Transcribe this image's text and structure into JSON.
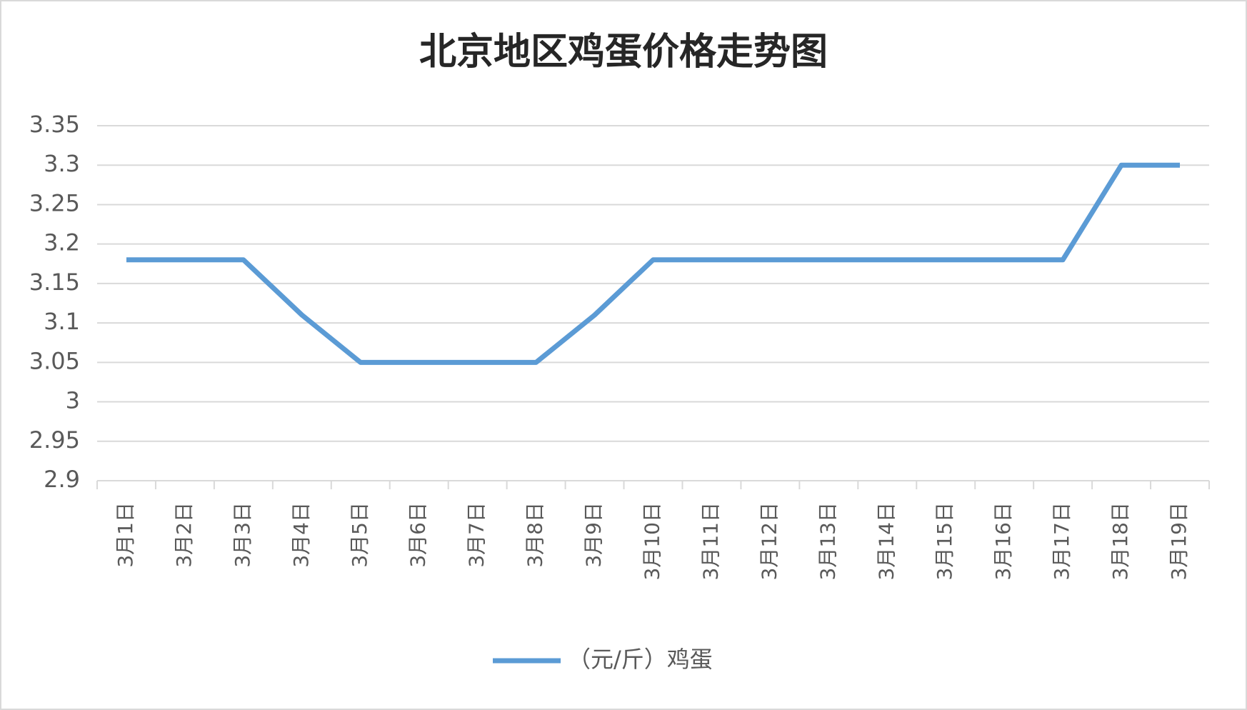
{
  "chart_data": {
    "type": "line",
    "title": "北京地区鸡蛋价格走势图",
    "categories": [
      "3月1日",
      "3月2日",
      "3月3日",
      "3月4日",
      "3月5日",
      "3月6日",
      "3月7日",
      "3月8日",
      "3月9日",
      "3月10日",
      "3月11日",
      "3月12日",
      "3月13日",
      "3月14日",
      "3月15日",
      "3月16日",
      "3月17日",
      "3月18日",
      "3月19日"
    ],
    "series": [
      {
        "name": "（元/斤）鸡蛋",
        "color": "#5b9bd5",
        "values": [
          3.18,
          3.18,
          3.18,
          3.11,
          3.05,
          3.05,
          3.05,
          3.05,
          3.11,
          3.18,
          3.18,
          3.18,
          3.18,
          3.18,
          3.18,
          3.18,
          3.18,
          3.3,
          3.3
        ]
      }
    ],
    "ylim": [
      2.9,
      3.35
    ],
    "yticks": [
      2.9,
      2.95,
      3,
      3.05,
      3.1,
      3.15,
      3.2,
      3.25,
      3.3,
      3.35
    ],
    "grid": true,
    "legend": "bottom"
  }
}
